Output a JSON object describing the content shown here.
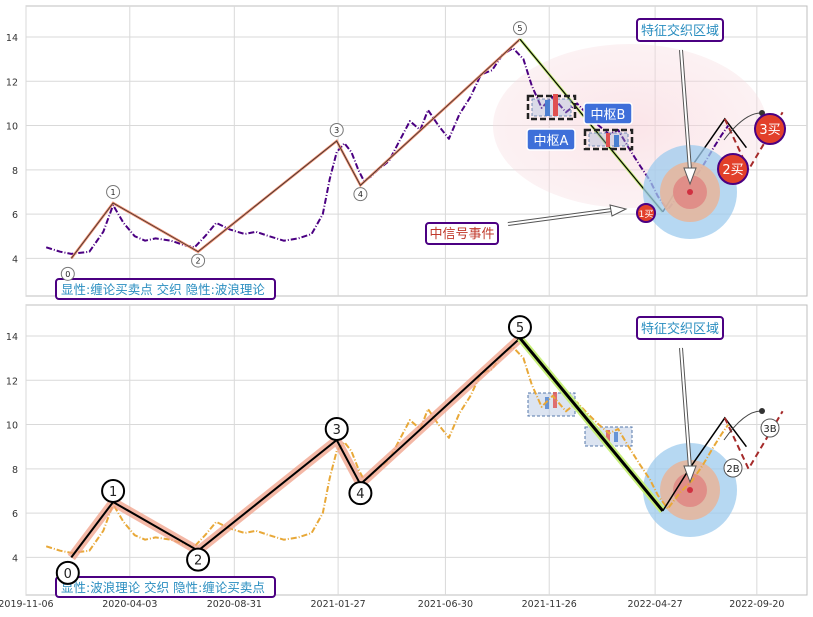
{
  "chart_data": [
    {
      "type": "line",
      "panel": "top",
      "title": "",
      "xlabel": "",
      "ylabel": "",
      "ylim": [
        2.3,
        15.4
      ],
      "yticks": [
        4,
        6,
        8,
        10,
        12,
        14
      ],
      "grid": true,
      "legend": "bottom-left",
      "legend_text": "显性:缠论买卖点 交织 隐性:波浪理论",
      "series": [
        {
          "kind": "price",
          "color": "#4b0082",
          "style": "dash-dot",
          "x": [
            "2019-12-05",
            "2019-12-25",
            "2020-01-10",
            "2020-02-05",
            "2020-02-25",
            "2020-03-10",
            "2020-03-25",
            "2020-04-10",
            "2020-04-25",
            "2020-05-10",
            "2020-06-01",
            "2020-06-20",
            "2020-07-05",
            "2020-07-20",
            "2020-08-05",
            "2020-08-25",
            "2020-09-15",
            "2020-10-01",
            "2020-10-20",
            "2020-11-10",
            "2020-12-01",
            "2020-12-20",
            "2021-01-05",
            "2021-01-15",
            "2021-01-25",
            "2021-02-05",
            "2021-02-15",
            "2021-02-25",
            "2021-03-05",
            "2021-03-15",
            "2021-03-25",
            "2021-04-10",
            "2021-04-25",
            "2021-05-10",
            "2021-05-25",
            "2021-06-05",
            "2021-06-20",
            "2021-07-05",
            "2021-07-20",
            "2021-08-05",
            "2021-08-20",
            "2021-09-05",
            "2021-09-20",
            "2021-10-05",
            "2021-10-20",
            "2021-11-01",
            "2021-11-15",
            "2021-12-01",
            "2021-12-20",
            "2022-01-05",
            "2022-01-20",
            "2022-02-05",
            "2022-02-20",
            "2022-03-05",
            "2022-03-20",
            "2022-04-05",
            "2022-04-20",
            "2022-05-01",
            "2022-05-15",
            "2022-06-01",
            "2022-06-20",
            "2022-07-05",
            "2022-07-20",
            "2022-08-01",
            "2022-08-10"
          ],
          "y": [
            4.5,
            4.3,
            4.2,
            4.3,
            5.2,
            6.4,
            5.6,
            5.0,
            4.8,
            4.9,
            4.8,
            4.6,
            4.5,
            5.0,
            5.6,
            5.3,
            5.1,
            5.2,
            5.0,
            4.8,
            4.9,
            5.1,
            6.0,
            7.6,
            8.8,
            9.2,
            8.8,
            8.0,
            7.5,
            7.7,
            8.0,
            8.4,
            9.3,
            10.2,
            9.8,
            10.7,
            10.0,
            9.4,
            10.5,
            11.3,
            12.3,
            12.5,
            13.2,
            13.5,
            13.0,
            11.8,
            10.8,
            11.3,
            10.6,
            11.0,
            10.5,
            10.0,
            9.6,
            9.8,
            9.0,
            8.2,
            7.5,
            6.8,
            6.2,
            6.9,
            7.5,
            8.2,
            9.0,
            9.6,
            10.0
          ]
        },
        {
          "kind": "wave",
          "color": "#f08a6a",
          "x": [
            "2020-01-10",
            "2020-03-10",
            "2020-07-10",
            "2021-01-25",
            "2021-02-28",
            "2021-10-15"
          ],
          "y": [
            4.0,
            6.5,
            4.3,
            9.3,
            7.3,
            13.9
          ]
        },
        {
          "kind": "down-leg",
          "color": "#000000",
          "x": [
            "2021-10-15",
            "2022-05-08"
          ],
          "y": [
            13.9,
            6.1
          ]
        },
        {
          "kind": "projection",
          "color": "#000000",
          "x": [
            "2022-05-08",
            "2022-06-15",
            "2022-08-05",
            "2022-09-05"
          ],
          "y": [
            6.1,
            8.0,
            10.3,
            9.0
          ]
        },
        {
          "kind": "forecast",
          "color": "#a52a2a",
          "style": "dashed",
          "x": [
            "2022-08-05",
            "2022-09-08",
            "2022-10-27"
          ],
          "y": [
            10.3,
            8.0,
            10.6
          ]
        }
      ],
      "wave_labels": [
        {
          "text": "0",
          "x": "2020-01-05",
          "y": 3.3
        },
        {
          "text": "1",
          "x": "2020-03-10",
          "y": 7.0
        },
        {
          "text": "2",
          "x": "2020-07-10",
          "y": 3.9
        },
        {
          "text": "3",
          "x": "2021-01-25",
          "y": 9.8
        },
        {
          "text": "4",
          "x": "2021-02-28",
          "y": 6.9
        },
        {
          "text": "5",
          "x": "2021-10-15",
          "y": 14.4
        }
      ],
      "annotations": [
        {
          "id": "feature-zone",
          "text": "特征交织区域"
        },
        {
          "id": "pivot-a",
          "text": "中枢A"
        },
        {
          "id": "pivot-b",
          "text": "中枢B"
        },
        {
          "id": "signal-event",
          "text": "中信号事件"
        },
        {
          "id": "buy-1",
          "text": "1买"
        },
        {
          "id": "buy-2",
          "text": "2买"
        },
        {
          "id": "buy-3",
          "text": "3买"
        }
      ]
    },
    {
      "type": "line",
      "panel": "bottom",
      "title": "",
      "xlabel": "",
      "ylabel": "",
      "ylim": [
        2.3,
        15.4
      ],
      "yticks": [
        4,
        6,
        8,
        10,
        12,
        14
      ],
      "xticks": [
        "2019-11-06",
        "2020-04-03",
        "2020-08-31",
        "2021-01-27",
        "2021-06-30",
        "2021-11-26",
        "2022-04-27",
        "2022-09-20"
      ],
      "grid": true,
      "legend": "bottom-left",
      "legend_text": "显性:波浪理论 交织 隐性:缠论买卖点",
      "series": [
        {
          "kind": "price",
          "color": "#e8a838",
          "style": "dash-dot",
          "x": [
            "2019-12-05",
            "2019-12-25",
            "2020-01-10",
            "2020-02-05",
            "2020-02-25",
            "2020-03-10",
            "2020-03-25",
            "2020-04-10",
            "2020-04-25",
            "2020-05-10",
            "2020-06-01",
            "2020-06-20",
            "2020-07-05",
            "2020-07-20",
            "2020-08-05",
            "2020-08-25",
            "2020-09-15",
            "2020-10-01",
            "2020-10-20",
            "2020-11-10",
            "2020-12-01",
            "2020-12-20",
            "2021-01-05",
            "2021-01-15",
            "2021-01-25",
            "2021-02-05",
            "2021-02-15",
            "2021-02-25",
            "2021-03-05",
            "2021-03-15",
            "2021-03-25",
            "2021-04-10",
            "2021-04-25",
            "2021-05-10",
            "2021-05-25",
            "2021-06-05",
            "2021-06-20",
            "2021-07-05",
            "2021-07-20",
            "2021-08-05",
            "2021-08-20",
            "2021-09-05",
            "2021-09-20",
            "2021-10-05",
            "2021-10-20",
            "2021-11-01",
            "2021-11-15",
            "2021-12-01",
            "2021-12-20",
            "2022-01-05",
            "2022-01-20",
            "2022-02-05",
            "2022-02-20",
            "2022-03-05",
            "2022-03-20",
            "2022-04-05",
            "2022-04-20",
            "2022-05-01",
            "2022-05-15",
            "2022-06-01",
            "2022-06-20",
            "2022-07-05",
            "2022-07-20",
            "2022-08-01",
            "2022-08-10"
          ],
          "y": [
            4.5,
            4.3,
            4.2,
            4.3,
            5.2,
            6.4,
            5.6,
            5.0,
            4.8,
            4.9,
            4.8,
            4.6,
            4.5,
            5.0,
            5.6,
            5.3,
            5.1,
            5.2,
            5.0,
            4.8,
            4.9,
            5.1,
            6.0,
            7.6,
            8.8,
            9.2,
            8.8,
            8.0,
            7.5,
            7.7,
            8.0,
            8.4,
            9.3,
            10.2,
            9.8,
            10.7,
            10.0,
            9.4,
            10.5,
            11.3,
            12.3,
            12.5,
            13.2,
            13.5,
            13.0,
            11.8,
            10.8,
            11.3,
            10.6,
            11.0,
            10.5,
            10.0,
            9.6,
            9.8,
            9.0,
            8.2,
            7.5,
            6.8,
            6.2,
            6.9,
            7.5,
            8.2,
            9.0,
            9.6,
            10.0
          ]
        },
        {
          "kind": "wave",
          "color": "#000000",
          "x": [
            "2020-01-10",
            "2020-03-10",
            "2020-07-10",
            "2021-01-25",
            "2021-02-28",
            "2021-10-15"
          ],
          "y": [
            4.0,
            6.5,
            4.3,
            9.3,
            7.3,
            13.9
          ]
        },
        {
          "kind": "down-leg",
          "color": "#000000",
          "x": [
            "2021-10-15",
            "2022-05-08"
          ],
          "y": [
            13.9,
            6.1
          ]
        },
        {
          "kind": "projection",
          "color": "#000000",
          "x": [
            "2022-05-08",
            "2022-06-15",
            "2022-08-05",
            "2022-09-05"
          ],
          "y": [
            6.1,
            8.0,
            10.3,
            9.0
          ]
        },
        {
          "kind": "forecast",
          "color": "#a52a2a",
          "style": "dashed",
          "x": [
            "2022-08-05",
            "2022-09-08",
            "2022-10-27"
          ],
          "y": [
            10.3,
            8.0,
            10.6
          ]
        }
      ],
      "wave_labels": [
        {
          "text": "0",
          "x": "2020-01-05",
          "y": 3.3
        },
        {
          "text": "1",
          "x": "2020-03-10",
          "y": 7.0
        },
        {
          "text": "2",
          "x": "2020-07-10",
          "y": 3.9
        },
        {
          "text": "3",
          "x": "2021-01-25",
          "y": 9.8
        },
        {
          "text": "4",
          "x": "2021-02-28",
          "y": 6.9
        },
        {
          "text": "5",
          "x": "2021-10-15",
          "y": 14.4
        }
      ],
      "annotations": [
        {
          "id": "feature-zone",
          "text": "特征交织区域"
        },
        {
          "id": "buy-2",
          "text": "2B"
        },
        {
          "id": "buy-3",
          "text": "3B"
        }
      ]
    }
  ]
}
